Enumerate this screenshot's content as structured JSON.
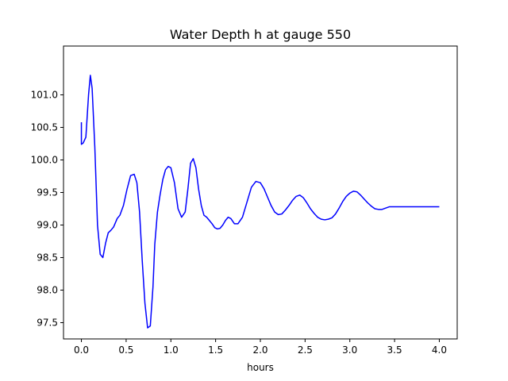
{
  "chart_data": {
    "type": "line",
    "title": "Water Depth h at gauge 550",
    "xlabel": "hours",
    "ylabel": "",
    "xlim": [
      -0.2,
      4.2
    ],
    "ylim": [
      97.25,
      101.75
    ],
    "xticks": [
      "0.0",
      "0.5",
      "1.0",
      "1.5",
      "2.0",
      "2.5",
      "3.0",
      "3.5",
      "4.0"
    ],
    "yticks": [
      "97.5",
      "98.0",
      "98.5",
      "99.0",
      "99.5",
      "100.0",
      "100.5",
      "101.0"
    ],
    "grid": false,
    "series": [
      {
        "color": "#0000ff",
        "x": [
          0.0,
          0.0,
          0.02,
          0.05,
          0.08,
          0.1,
          0.12,
          0.15,
          0.18,
          0.21,
          0.24,
          0.27,
          0.3,
          0.33,
          0.36,
          0.4,
          0.43,
          0.47,
          0.51,
          0.55,
          0.59,
          0.62,
          0.65,
          0.68,
          0.71,
          0.74,
          0.77,
          0.8,
          0.82,
          0.85,
          0.88,
          0.91,
          0.94,
          0.97,
          1.0,
          1.04,
          1.08,
          1.12,
          1.16,
          1.19,
          1.22,
          1.25,
          1.28,
          1.31,
          1.34,
          1.37,
          1.4,
          1.43,
          1.46,
          1.49,
          1.52,
          1.55,
          1.58,
          1.61,
          1.64,
          1.67,
          1.71,
          1.75,
          1.8,
          1.85,
          1.9,
          1.95,
          2.0,
          2.04,
          2.08,
          2.12,
          2.16,
          2.2,
          2.24,
          2.28,
          2.32,
          2.36,
          2.4,
          2.44,
          2.48,
          2.52,
          2.56,
          2.6,
          2.64,
          2.68,
          2.72,
          2.76,
          2.8,
          2.84,
          2.88,
          2.92,
          2.96,
          3.0,
          3.04,
          3.08,
          3.12,
          3.16,
          3.2,
          3.24,
          3.28,
          3.32,
          3.36,
          3.4,
          3.44,
          3.48,
          3.52,
          3.56,
          3.6,
          3.64,
          3.68,
          3.72,
          3.76,
          3.8,
          3.84,
          3.88,
          3.92,
          3.96,
          4.0
        ],
        "y": [
          100.58,
          100.24,
          100.26,
          100.35,
          101.0,
          101.3,
          101.1,
          100.2,
          99.0,
          98.55,
          98.5,
          98.72,
          98.88,
          98.92,
          98.97,
          99.1,
          99.15,
          99.3,
          99.55,
          99.76,
          99.78,
          99.65,
          99.2,
          98.45,
          97.8,
          97.42,
          97.45,
          98.05,
          98.7,
          99.2,
          99.47,
          99.7,
          99.85,
          99.9,
          99.88,
          99.65,
          99.25,
          99.12,
          99.2,
          99.55,
          99.95,
          100.02,
          99.88,
          99.55,
          99.3,
          99.15,
          99.12,
          99.07,
          99.02,
          98.96,
          98.94,
          98.95,
          99.0,
          99.07,
          99.12,
          99.1,
          99.02,
          99.02,
          99.12,
          99.35,
          99.58,
          99.67,
          99.65,
          99.56,
          99.43,
          99.3,
          99.2,
          99.16,
          99.17,
          99.23,
          99.3,
          99.38,
          99.44,
          99.46,
          99.42,
          99.34,
          99.25,
          99.18,
          99.12,
          99.09,
          99.08,
          99.09,
          99.11,
          99.17,
          99.26,
          99.36,
          99.44,
          99.49,
          99.52,
          99.51,
          99.46,
          99.4,
          99.34,
          99.29,
          99.25,
          99.24,
          99.24,
          99.26,
          99.28,
          99.28,
          99.28,
          99.28,
          99.28,
          99.28,
          99.28,
          99.28,
          99.28,
          99.28,
          99.28,
          99.28,
          99.28,
          99.28,
          99.28
        ]
      }
    ]
  }
}
